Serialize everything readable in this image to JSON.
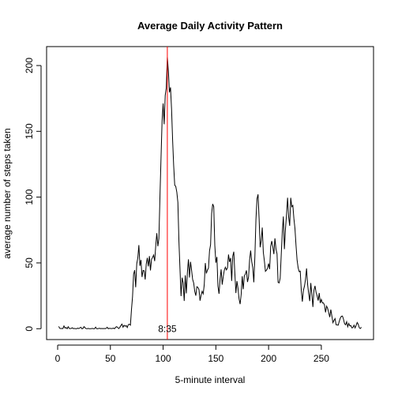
{
  "chart_data": {
    "type": "line",
    "title": "Average Daily Activity Pattern",
    "x_label": "5-minute interval",
    "y_label": "average number of steps taken",
    "color": "#000000",
    "xlim": [
      -10.48,
      299.48
    ],
    "ylim": [
      -8.25,
      214.4
    ],
    "xticks": [
      0,
      50,
      100,
      150,
      200,
      250
    ],
    "yticks": [
      0,
      50,
      100,
      150,
      200
    ],
    "vline": {
      "x": 104,
      "color": "#ff0000"
    },
    "annotation": {
      "text": "8:35",
      "x": 104,
      "y": 0
    },
    "x": [
      1,
      2,
      3,
      4,
      5,
      6,
      7,
      8,
      9,
      10,
      11,
      12,
      13,
      14,
      15,
      16,
      17,
      18,
      19,
      20,
      21,
      22,
      23,
      24,
      25,
      26,
      27,
      28,
      29,
      30,
      31,
      32,
      33,
      34,
      35,
      36,
      37,
      38,
      39,
      40,
      41,
      42,
      43,
      44,
      45,
      46,
      47,
      48,
      49,
      50,
      51,
      52,
      53,
      54,
      55,
      56,
      57,
      58,
      59,
      60,
      61,
      62,
      63,
      64,
      65,
      66,
      67,
      68,
      69,
      70,
      71,
      72,
      73,
      74,
      75,
      76,
      77,
      78,
      79,
      80,
      81,
      82,
      83,
      84,
      85,
      86,
      87,
      88,
      89,
      90,
      91,
      92,
      93,
      94,
      95,
      96,
      97,
      98,
      99,
      100,
      101,
      102,
      103,
      104,
      105,
      106,
      107,
      108,
      109,
      110,
      111,
      112,
      113,
      114,
      115,
      116,
      117,
      118,
      119,
      120,
      121,
      122,
      123,
      124,
      125,
      126,
      127,
      128,
      129,
      130,
      131,
      132,
      133,
      134,
      135,
      136,
      137,
      138,
      139,
      140,
      141,
      142,
      143,
      144,
      145,
      146,
      147,
      148,
      149,
      150,
      151,
      152,
      153,
      154,
      155,
      156,
      157,
      158,
      159,
      160,
      161,
      162,
      163,
      164,
      165,
      166,
      167,
      168,
      169,
      170,
      171,
      172,
      173,
      174,
      175,
      176,
      177,
      178,
      179,
      180,
      181,
      182,
      183,
      184,
      185,
      186,
      187,
      188,
      189,
      190,
      191,
      192,
      193,
      194,
      195,
      196,
      197,
      198,
      199,
      200,
      201,
      202,
      203,
      204,
      205,
      206,
      207,
      208,
      209,
      210,
      211,
      212,
      213,
      214,
      215,
      216,
      217,
      218,
      219,
      220,
      221,
      222,
      223,
      224,
      225,
      226,
      227,
      228,
      229,
      230,
      231,
      232,
      233,
      234,
      235,
      236,
      237,
      238,
      239,
      240,
      241,
      242,
      243,
      244,
      245,
      246,
      247,
      248,
      249,
      250,
      251,
      252,
      253,
      254,
      255,
      256,
      257,
      258,
      259,
      260,
      261,
      262,
      263,
      264,
      265,
      266,
      267,
      268,
      269,
      270,
      271,
      272,
      273,
      274,
      275,
      276,
      277,
      278,
      279,
      280,
      281,
      282,
      283,
      284,
      285,
      286,
      287,
      288
    ],
    "values": [
      1.7,
      0.3,
      0.1,
      0.2,
      0.1,
      2.1,
      0.5,
      0.9,
      0,
      1.5,
      0.2,
      0.1,
      0.3,
      0.7,
      0,
      0.2,
      0,
      0,
      0.4,
      0.1,
      0.6,
      1.1,
      0,
      0.2,
      1.6,
      0.7,
      0.1,
      0,
      0.2,
      0,
      0,
      0.1,
      0.2,
      0,
      0,
      1.2,
      0,
      0,
      0.2,
      0.3,
      0,
      0.2,
      0,
      0.2,
      0,
      0.3,
      1.1,
      0,
      0.3,
      0.2,
      0.1,
      0.2,
      0.4,
      0,
      1.1,
      1.6,
      0.8,
      0.1,
      1.1,
      2.5,
      3.5,
      1.1,
      2.6,
      1.8,
      2.4,
      0.9,
      3.1,
      3.4,
      2.7,
      14.5,
      24.2,
      41.3,
      44.5,
      31.5,
      49.3,
      53.8,
      63.5,
      47.8,
      52.2,
      39.3,
      44.3,
      44.1,
      37.4,
      49.0,
      53.8,
      47.4,
      55.2,
      44.3,
      52.7,
      54.2,
      56.0,
      51.4,
      63.0,
      72.6,
      62.7,
      68.5,
      100.4,
      129.4,
      157.5,
      171.2,
      155.4,
      177.3,
      183.0,
      206.2,
      195.9,
      179.6,
      183.4,
      167.0,
      143.5,
      124.0,
      109.1,
      108.1,
      103.7,
      95.9,
      66.2,
      45.2,
      24.8,
      38.8,
      34.9,
      21.1,
      40.6,
      26.9,
      42.4,
      52.7,
      38.9,
      50.8,
      44.3,
      37.4,
      34.7,
      28.3,
      25.1,
      31.9,
      31.4,
      29.7,
      21.3,
      25.5,
      28.4,
      26.5,
      33.4,
      49.9,
      42.0,
      44.6,
      46.0,
      59.2,
      63.9,
      87.6,
      94.8,
      92.8,
      63.4,
      50.2,
      54.5,
      32.4,
      26.5,
      37.7,
      45.1,
      33.5,
      39.6,
      44.4,
      46.7,
      44.7,
      46.2,
      56.4,
      50.7,
      53.8,
      36.3,
      55.0,
      58.5,
      42.2,
      27.1,
      36.2,
      30.7,
      22.6,
      18.7,
      26.1,
      39.9,
      30.0,
      40.2,
      41.5,
      44.3,
      35.5,
      39.3,
      52.4,
      59.4,
      50.9,
      46.4,
      35.3,
      55.0,
      82.8,
      98.7,
      102.1,
      83.8,
      61.9,
      66.9,
      76.9,
      58.1,
      51.5,
      43.6,
      44.5,
      45.9,
      49.5,
      45.3,
      62.5,
      66.6,
      62.3,
      56.7,
      68.7,
      60.6,
      56.9,
      35.2,
      34.8,
      38.5,
      56.4,
      73.5,
      85.3,
      60.5,
      75.9,
      86.7,
      99.5,
      85.2,
      78.2,
      99.5,
      92.7,
      93.7,
      83.6,
      76.1,
      63.3,
      52.3,
      46.3,
      43.4,
      43.8,
      29.0,
      20.6,
      29.0,
      32.3,
      37.5,
      45.8,
      33.5,
      26.7,
      21.0,
      34.7,
      26.4,
      16.5,
      29.2,
      32.6,
      27.7,
      25.0,
      21.4,
      27.1,
      19.5,
      22.2,
      19.6,
      19.6,
      17.9,
      12.4,
      17.1,
      15.4,
      12.2,
      8.8,
      14.5,
      9.6,
      4.6,
      6.3,
      7.7,
      3.0,
      2.9,
      2.7,
      5.6,
      8.1,
      9.4,
      9.6,
      7.3,
      3.9,
      3.0,
      5.3,
      1.5,
      4.0,
      2.1,
      2.4,
      0.6,
      0.9,
      2.7,
      0.6,
      2.6,
      4.7,
      3.3,
      0.7,
      0.2,
      1.1
    ]
  }
}
